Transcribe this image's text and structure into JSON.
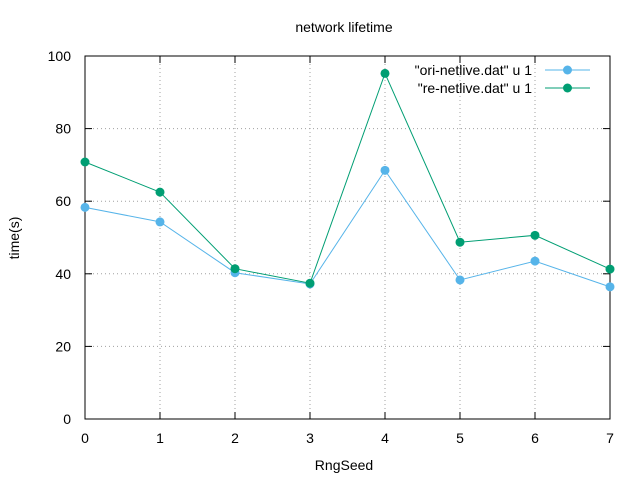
{
  "chart_data": {
    "type": "line",
    "title": "network lifetime",
    "xlabel": "RngSeed",
    "ylabel": "time(s)",
    "x": [
      0,
      1,
      2,
      3,
      4,
      5,
      6,
      7
    ],
    "xlim": [
      0,
      7
    ],
    "ylim": [
      0,
      100
    ],
    "xticks": [
      "0",
      "1",
      "2",
      "3",
      "4",
      "5",
      "6",
      "7"
    ],
    "yticks": [
      "0",
      "20",
      "40",
      "60",
      "80",
      "100"
    ],
    "grid": true,
    "legend_position": "top-right",
    "series": [
      {
        "name": "\"ori-netlive.dat\" u 1",
        "color": "#56b4e9",
        "values": [
          58.3,
          54.3,
          40.3,
          37.2,
          68.5,
          38.3,
          43.5,
          36.4
        ]
      },
      {
        "name": "\"re-netlive.dat\" u 1",
        "color": "#009e73",
        "values": [
          70.8,
          62.5,
          41.4,
          37.4,
          95.2,
          48.7,
          50.6,
          41.3
        ]
      }
    ]
  }
}
